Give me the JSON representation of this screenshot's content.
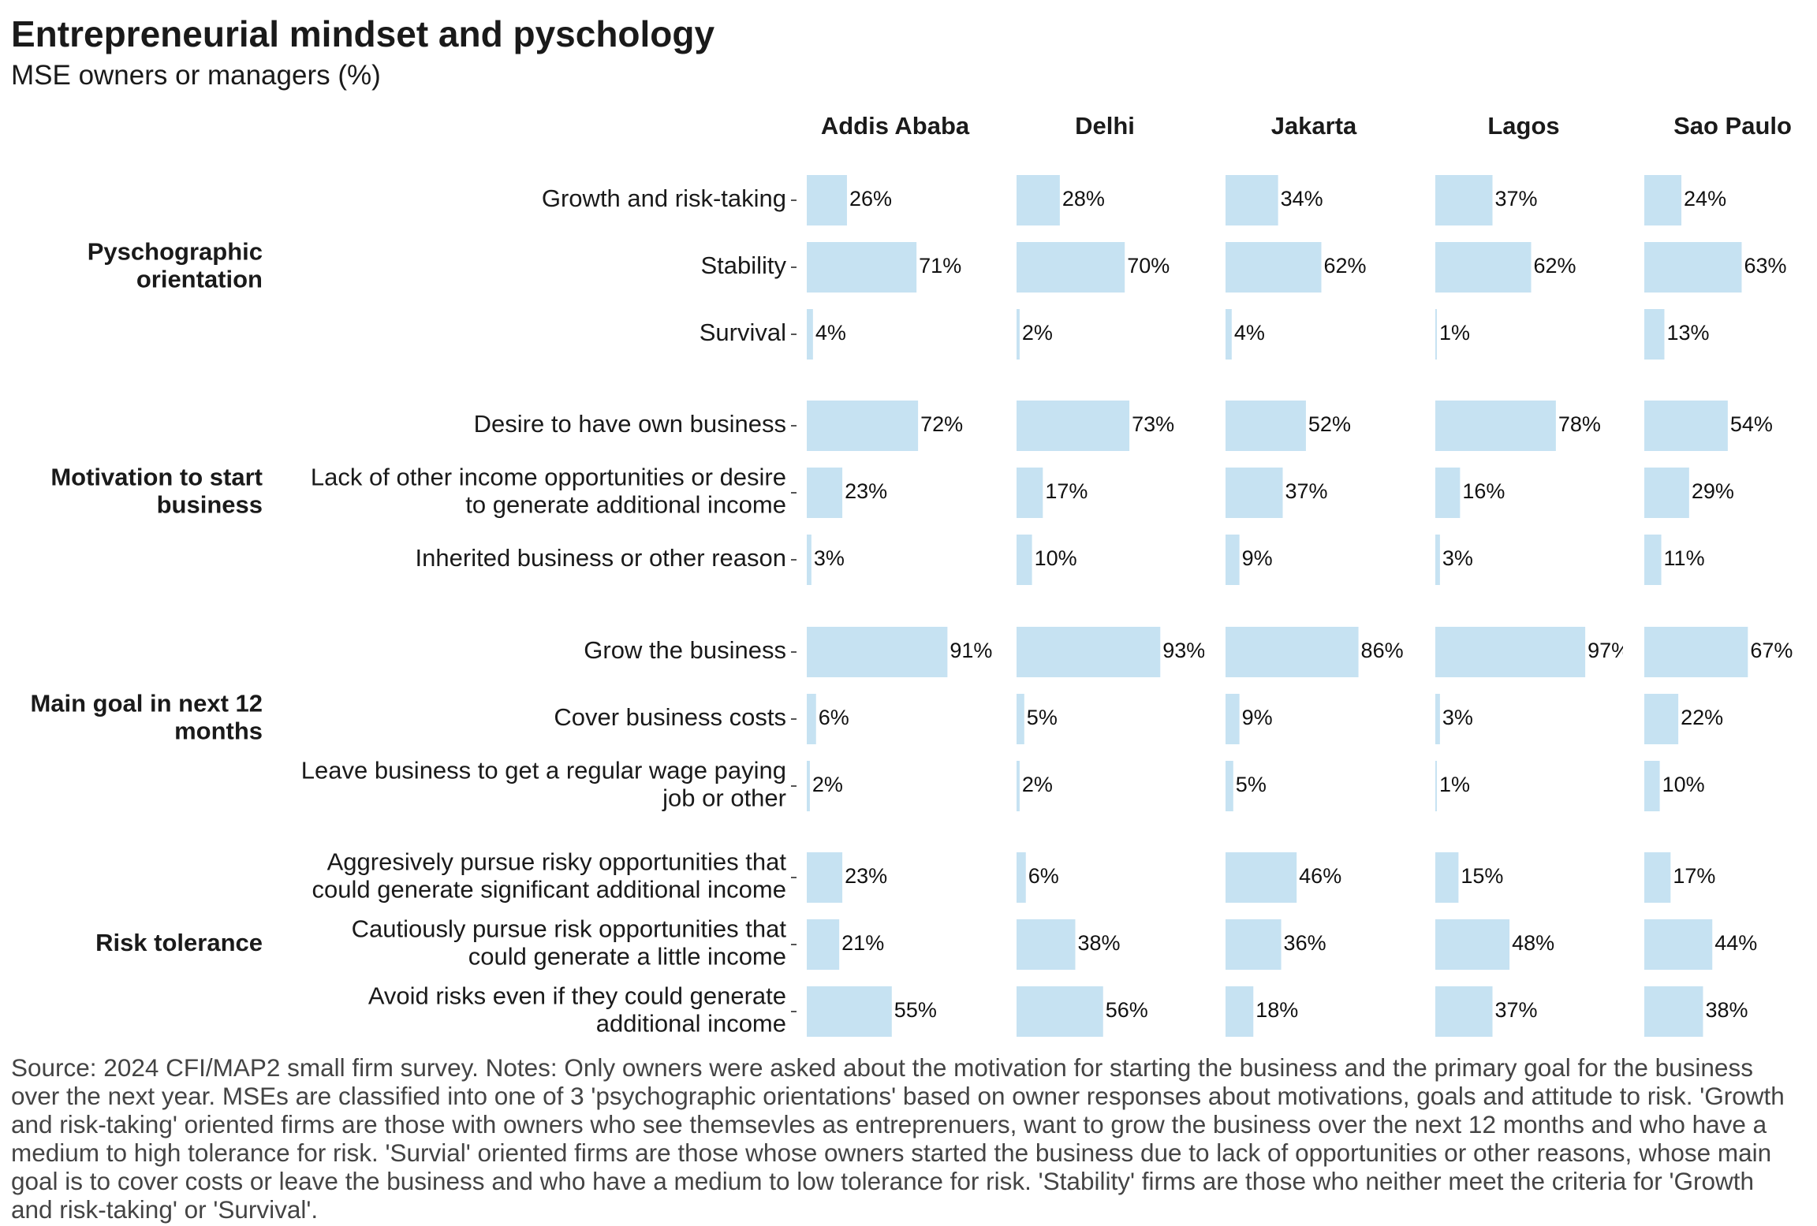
{
  "chart_data": {
    "type": "bar",
    "orientation": "horizontal",
    "title": "Entrepreneurial mindset and pyschology",
    "subtitle": "MSE owners or managers (%)",
    "xlim": [
      0,
      100
    ],
    "grid": false,
    "value_suffix": "%",
    "bar_color": "#c6e2f2",
    "facets": [
      "Addis Ababa",
      "Delhi",
      "Jakarta",
      "Lagos",
      "Sao Paulo"
    ],
    "groups": [
      {
        "name": [
          "Pyschographic",
          "orientation"
        ],
        "rows": [
          {
            "label": [
              "Growth and risk-taking"
            ],
            "values": [
              26,
              28,
              34,
              37,
              24
            ]
          },
          {
            "label": [
              "Stability"
            ],
            "values": [
              71,
              70,
              62,
              62,
              63
            ]
          },
          {
            "label": [
              "Survival"
            ],
            "values": [
              4,
              2,
              4,
              1,
              13
            ]
          }
        ]
      },
      {
        "name": [
          "Motivation to start",
          "business"
        ],
        "rows": [
          {
            "label": [
              "Desire to have own business"
            ],
            "values": [
              72,
              73,
              52,
              78,
              54
            ]
          },
          {
            "label": [
              "Lack of other income opportunities or desire",
              "to generate additional income"
            ],
            "values": [
              23,
              17,
              37,
              16,
              29
            ]
          },
          {
            "label": [
              "Inherited business or other reason"
            ],
            "values": [
              3,
              10,
              9,
              3,
              11
            ]
          }
        ]
      },
      {
        "name": [
          "Main goal in next 12",
          "months"
        ],
        "rows": [
          {
            "label": [
              "Grow the business"
            ],
            "values": [
              91,
              93,
              86,
              97,
              67
            ]
          },
          {
            "label": [
              "Cover business costs"
            ],
            "values": [
              6,
              5,
              9,
              3,
              22
            ]
          },
          {
            "label": [
              "Leave business to get a regular wage paying",
              "job or other"
            ],
            "values": [
              2,
              2,
              5,
              1,
              10
            ]
          }
        ]
      },
      {
        "name": [
          "Risk tolerance"
        ],
        "rows": [
          {
            "label": [
              "Aggresively pursue risky opportunities that",
              "could generate significant additional income"
            ],
            "values": [
              23,
              6,
              46,
              15,
              17
            ]
          },
          {
            "label": [
              "Cautiously pursue risk opportunities that",
              "could generate a little income"
            ],
            "values": [
              21,
              38,
              36,
              48,
              44
            ]
          },
          {
            "label": [
              "Avoid risks even if they could generate",
              "additional income"
            ],
            "values": [
              55,
              56,
              18,
              37,
              38
            ]
          }
        ]
      }
    ]
  },
  "footnote": "Source: 2024 CFI/MAP2 small firm survey. Notes: Only owners were asked about the motivation for starting the business and the primary goal for the business over the next year. MSEs are classified into one of 3 'psychographic orientations' based on owner responses about motivations, goals and attitude to risk. 'Growth and risk-taking' oriented firms are those with owners who see themsevles as entreprenuers, want to grow the business over the next 12 months and who have a medium to high tolerance for risk. 'Survial' oriented firms are those whose owners started the business due to lack of opportunities or other reasons, whose main goal is to cover costs or leave the business and who have a medium to low tolerance for risk. 'Stability' firms are those who neither meet the criteria for 'Growth and risk-taking' or 'Survival'."
}
